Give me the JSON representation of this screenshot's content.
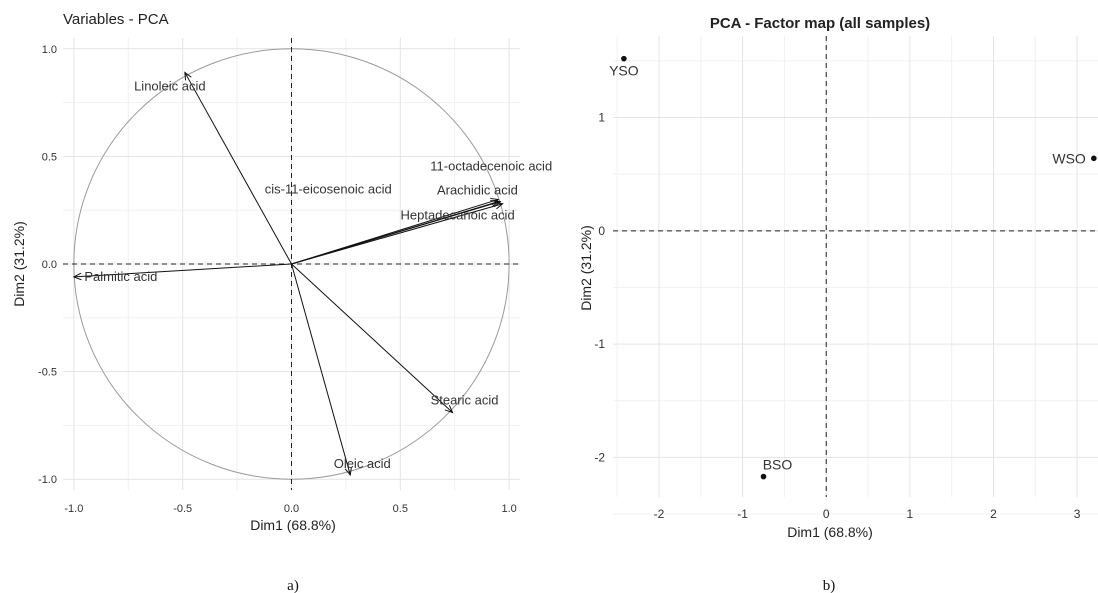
{
  "chart_data": [
    {
      "type": "scatter",
      "subtype": "correlation-circle",
      "title": "Variables - PCA",
      "caption": "a)",
      "xlabel": "Dim1 (68.8%)",
      "ylabel": "Dim2 (31.2%)",
      "xlim": [
        -1.05,
        1.05
      ],
      "ylim": [
        -1.05,
        1.05
      ],
      "xticks": [
        -1.0,
        -0.5,
        0.0,
        0.5,
        1.0
      ],
      "xtick_labels": [
        "-1.0",
        "-0.5",
        "0.0",
        "0.5",
        "1.0"
      ],
      "yticks": [
        -1.0,
        -0.5,
        0.0,
        0.5,
        1.0
      ],
      "ytick_labels": [
        "-1.0",
        "-0.5",
        "0.0",
        "0.5",
        "1.0"
      ],
      "grid": true,
      "unit_circle": true,
      "variables": [
        {
          "name": "Linoleic acid",
          "x": -0.49,
          "y": 0.89
        },
        {
          "name": "11-octadecenoic acid",
          "x": 0.95,
          "y": 0.29
        },
        {
          "name": "Arachidic acid",
          "x": 0.96,
          "y": 0.29
        },
        {
          "name": "cis-11-eicosenoic acid",
          "x": 0.95,
          "y": 0.3
        },
        {
          "name": "Heptadecanoic acid",
          "x": 0.97,
          "y": 0.28
        },
        {
          "name": "Palmitic acid",
          "x": -1.0,
          "y": -0.06
        },
        {
          "name": "Stearic acid",
          "x": 0.74,
          "y": -0.69
        },
        {
          "name": "Oleic acid",
          "x": 0.27,
          "y": -0.98
        }
      ]
    },
    {
      "type": "scatter",
      "title": "PCA - Factor map (all samples)",
      "caption": "b)",
      "xlabel": "Dim1 (68.8%)",
      "ylabel": "Dim2 (31.2%)",
      "xlim": [
        -2.55,
        3.25
      ],
      "ylim": [
        -2.35,
        1.72
      ],
      "xticks": [
        -2,
        -1,
        0,
        1,
        2,
        3
      ],
      "xtick_labels": [
        "-2",
        "-1",
        "0",
        "1",
        "2",
        "3"
      ],
      "yticks": [
        -2,
        -1,
        0,
        1
      ],
      "ytick_labels": [
        "-2",
        "-1",
        "0",
        "1"
      ],
      "grid": true,
      "points": [
        {
          "label": "YSO",
          "x": -2.42,
          "y": 1.52
        },
        {
          "label": "WSO",
          "x": 3.2,
          "y": 0.64
        },
        {
          "label": "BSO",
          "x": -0.75,
          "y": -2.17
        }
      ]
    }
  ]
}
